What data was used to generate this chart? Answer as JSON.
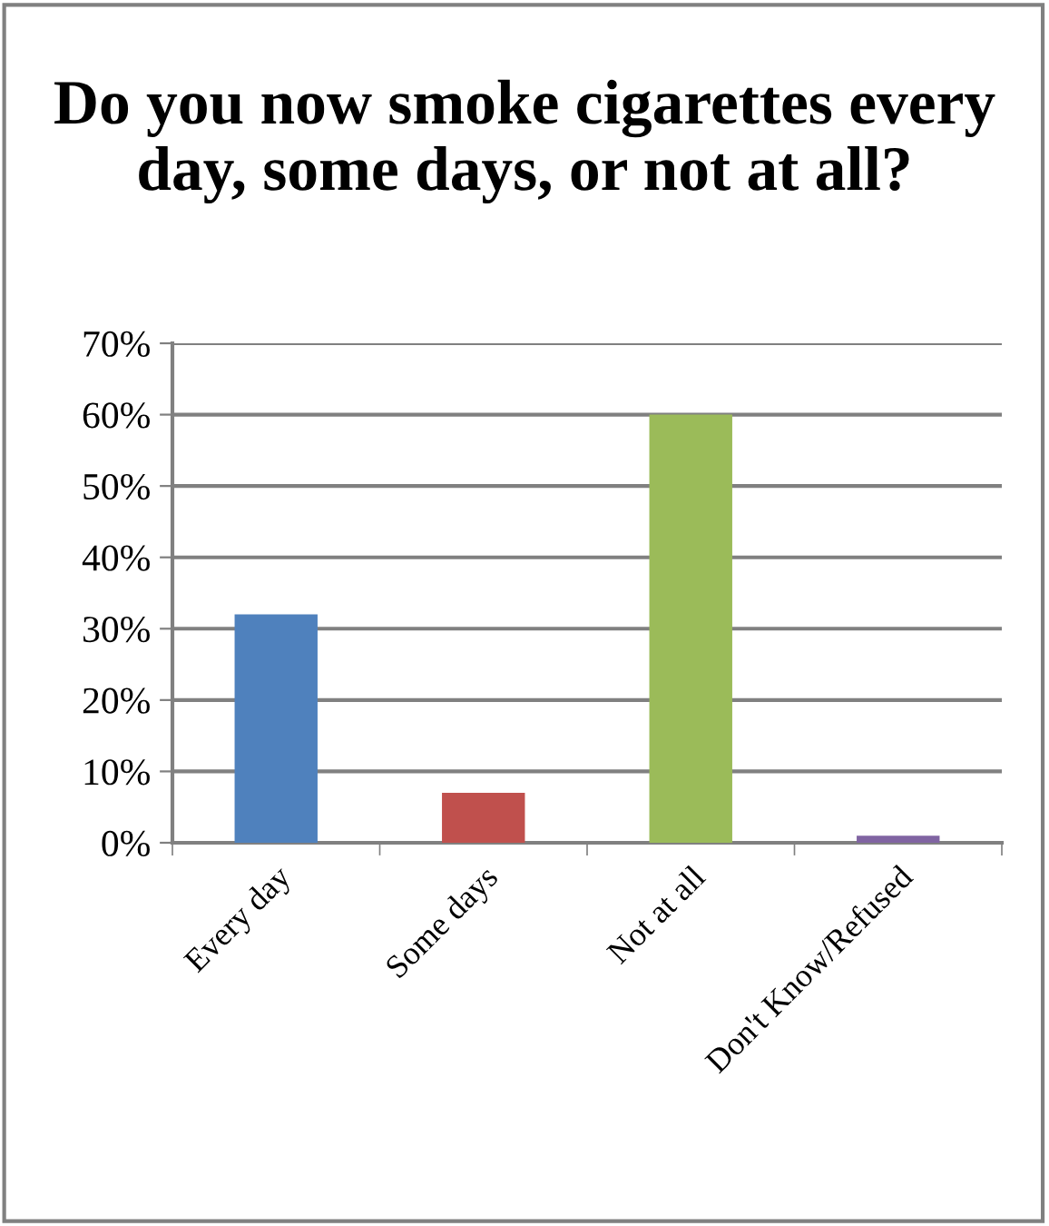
{
  "chart_data": {
    "type": "bar",
    "title": "Do you now smoke cigarettes every day, some days, or not at all?",
    "categories": [
      "Every day",
      "Some days",
      "Not at all",
      "Don't Know/Refused"
    ],
    "values": [
      32,
      7,
      60,
      1
    ],
    "colors": [
      "#4f81bd",
      "#c0504d",
      "#9bbb59",
      "#8064a2"
    ],
    "ylim": [
      0,
      70
    ],
    "yticks": [
      {
        "value": 0,
        "label": "0%"
      },
      {
        "value": 10,
        "label": "10%"
      },
      {
        "value": 20,
        "label": "20%"
      },
      {
        "value": 30,
        "label": "30%"
      },
      {
        "value": 40,
        "label": "40%"
      },
      {
        "value": 50,
        "label": "50%"
      },
      {
        "value": 60,
        "label": "60%"
      },
      {
        "value": 70,
        "label": "70%"
      }
    ],
    "grid": "y",
    "legend": false
  }
}
